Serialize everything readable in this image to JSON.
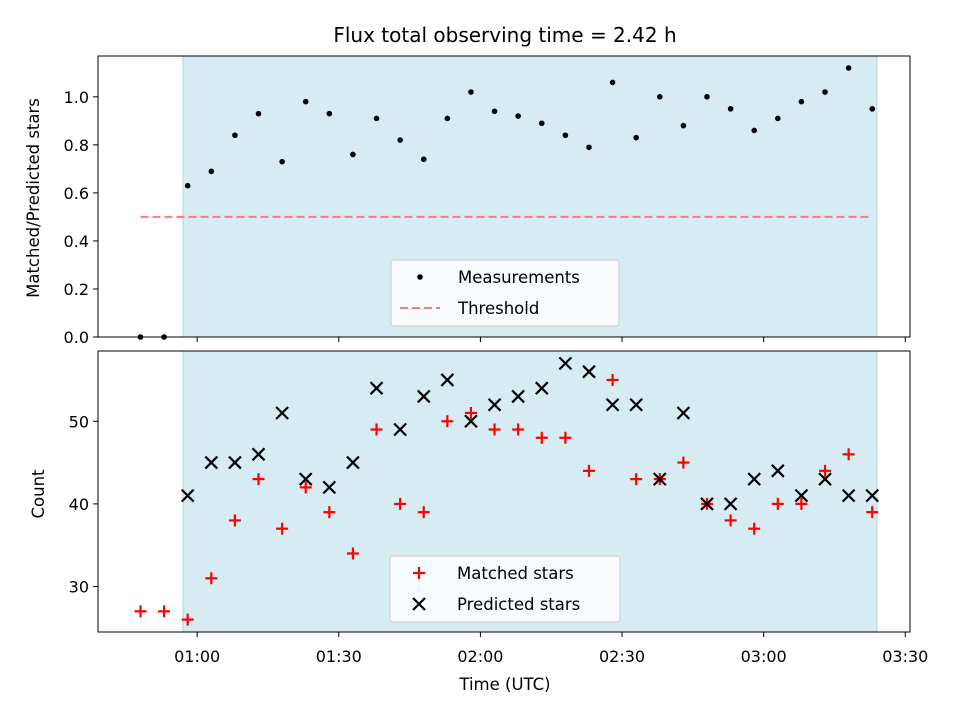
{
  "chart_data": [
    {
      "type": "scatter",
      "title": "Flux total observing time = 2.42 h",
      "ylabel": "Matched/Predicted stars",
      "ylim": [
        0,
        1.17
      ],
      "yticks": [
        0.0,
        0.2,
        0.4,
        0.6,
        0.8,
        1.0
      ],
      "ytick_labels": [
        "0.0",
        "0.2",
        "0.4",
        "0.6",
        "0.8",
        "1.0"
      ],
      "xlim": [
        "00:39",
        "03:31"
      ],
      "shaded_span": [
        "00:57",
        "03:24"
      ],
      "series": [
        {
          "name": "Measurements",
          "marker": "dot",
          "color": "#000000",
          "x": [
            "00:48",
            "00:53",
            "00:58",
            "01:03",
            "01:08",
            "01:13",
            "01:18",
            "01:23",
            "01:28",
            "01:33",
            "01:38",
            "01:43",
            "01:48",
            "01:53",
            "01:58",
            "02:03",
            "02:08",
            "02:13",
            "02:18",
            "02:23",
            "02:28",
            "02:33",
            "02:38",
            "02:43",
            "02:48",
            "02:53",
            "02:58",
            "03:03",
            "03:08",
            "03:13",
            "03:18",
            "03:23"
          ],
          "y": [
            0.0,
            0.0,
            0.63,
            0.69,
            0.84,
            0.93,
            0.73,
            0.98,
            0.93,
            0.76,
            0.91,
            0.82,
            0.74,
            0.91,
            1.02,
            0.94,
            0.92,
            0.89,
            0.84,
            0.79,
            1.06,
            0.83,
            1.0,
            0.88,
            1.0,
            0.95,
            0.86,
            0.91,
            0.98,
            1.02,
            1.12,
            0.95
          ]
        },
        {
          "name": "Threshold",
          "style": "dashed",
          "color": "#f08080",
          "x": [
            "00:48",
            "03:23"
          ],
          "y": [
            0.5,
            0.5
          ]
        }
      ],
      "legend": "lower-center"
    },
    {
      "type": "scatter",
      "xlabel": "Time (UTC)",
      "ylabel": "Count",
      "ylim": [
        24.5,
        58.5
      ],
      "yticks": [
        30,
        40,
        50
      ],
      "ytick_labels": [
        "30",
        "40",
        "50"
      ],
      "xlim": [
        "00:39",
        "03:31"
      ],
      "xticks": [
        "01:00",
        "01:30",
        "02:00",
        "02:30",
        "03:00",
        "03:30"
      ],
      "xtick_labels": [
        "01:00",
        "01:30",
        "02:00",
        "02:30",
        "03:00",
        "03:30"
      ],
      "shaded_span": [
        "00:57",
        "03:24"
      ],
      "series": [
        {
          "name": "Matched stars",
          "marker": "plus",
          "color": "#ff0000",
          "x": [
            "00:48",
            "00:53",
            "00:58",
            "01:03",
            "01:08",
            "01:13",
            "01:18",
            "01:23",
            "01:28",
            "01:33",
            "01:38",
            "01:43",
            "01:48",
            "01:53",
            "01:58",
            "02:03",
            "02:08",
            "02:13",
            "02:18",
            "02:23",
            "02:28",
            "02:33",
            "02:38",
            "02:43",
            "02:48",
            "02:53",
            "02:58",
            "03:03",
            "03:08",
            "03:13",
            "03:18",
            "03:23"
          ],
          "y": [
            27,
            27,
            26,
            31,
            38,
            43,
            37,
            42,
            39,
            34,
            49,
            40,
            39,
            50,
            51,
            49,
            49,
            48,
            48,
            44,
            55,
            43,
            43,
            45,
            40,
            38,
            37,
            40,
            40,
            44,
            46,
            39
          ]
        },
        {
          "name": "Predicted stars",
          "marker": "x",
          "color": "#000000",
          "x": [
            "00:58",
            "01:03",
            "01:08",
            "01:13",
            "01:18",
            "01:23",
            "01:28",
            "01:33",
            "01:38",
            "01:43",
            "01:48",
            "01:53",
            "01:58",
            "02:03",
            "02:08",
            "02:13",
            "02:18",
            "02:23",
            "02:28",
            "02:33",
            "02:38",
            "02:43",
            "02:48",
            "02:53",
            "02:58",
            "03:03",
            "03:08",
            "03:13",
            "03:18",
            "03:23"
          ],
          "y": [
            41,
            45,
            45,
            46,
            51,
            43,
            42,
            45,
            54,
            49,
            53,
            55,
            50,
            52,
            53,
            54,
            57,
            56,
            52,
            52,
            43,
            51,
            40,
            40,
            43,
            44,
            41,
            43,
            41,
            41
          ]
        }
      ],
      "legend": "lower-center"
    }
  ],
  "colors": {
    "span_fill": "#add8e6",
    "threshold": "#f08080",
    "matched": "#ff0000",
    "predicted": "#000000",
    "measurement": "#000000"
  }
}
